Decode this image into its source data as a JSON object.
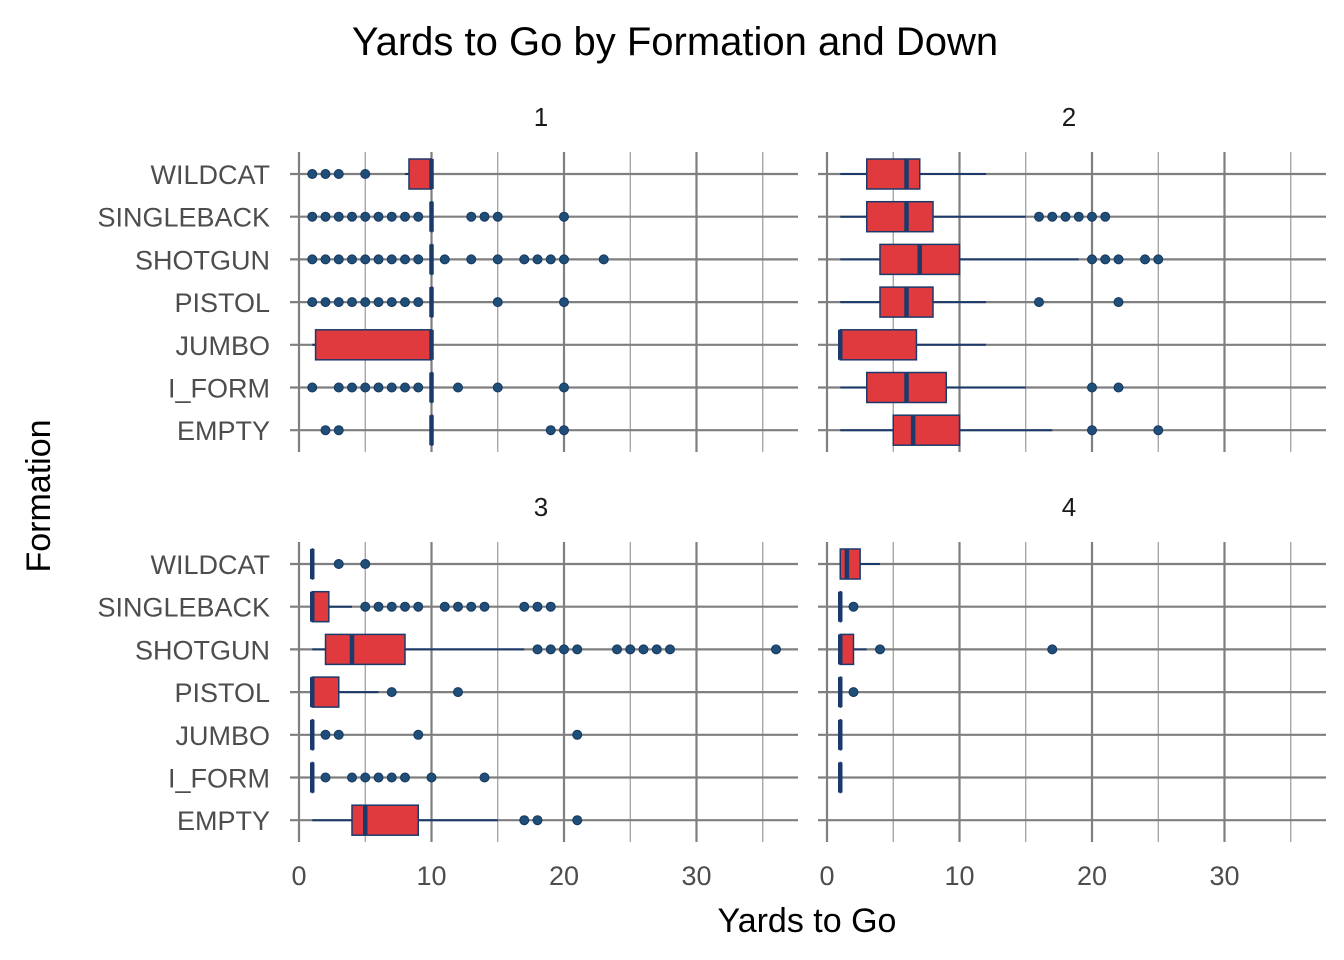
{
  "chart_data": {
    "type": "boxplot",
    "title": "Yards to Go by Formation and Down",
    "xlabel": "Yards to Go",
    "ylabel": "Formation",
    "xlim": [
      0,
      37
    ],
    "x_ticks": [
      0,
      10,
      20,
      30
    ],
    "x_tick_labels": [
      "0",
      "10",
      "20",
      "30"
    ],
    "grid": true,
    "colors": {
      "box_fill": "#e03a3e",
      "box_line": "#1b3a6b",
      "point": "#1f4e79",
      "grid": "#7f7f7f"
    },
    "categories": [
      "WILDCAT",
      "SINGLEBACK",
      "SHOTGUN",
      "PISTOL",
      "JUMBO",
      "I_FORM",
      "EMPTY"
    ],
    "panels": [
      {
        "label": "1",
        "boxes": [
          {
            "formation": "WILDCAT",
            "lower_whisker": 8,
            "q1": 8.3,
            "median": 10,
            "q3": 10,
            "upper_whisker": 10,
            "outliers": [
              1,
              2,
              3,
              5
            ]
          },
          {
            "formation": "SINGLEBACK",
            "lower_whisker": 10,
            "q1": 10,
            "median": 10,
            "q3": 10,
            "upper_whisker": 10,
            "outliers": [
              1,
              2,
              3,
              4,
              5,
              6,
              7,
              8,
              9,
              13,
              14,
              15,
              20
            ]
          },
          {
            "formation": "SHOTGUN",
            "lower_whisker": 10,
            "q1": 10,
            "median": 10,
            "q3": 10,
            "upper_whisker": 10,
            "outliers": [
              1,
              2,
              3,
              4,
              5,
              6,
              7,
              8,
              9,
              11,
              13,
              15,
              17,
              18,
              19,
              20,
              23
            ]
          },
          {
            "formation": "PISTOL",
            "lower_whisker": 10,
            "q1": 10,
            "median": 10,
            "q3": 10,
            "upper_whisker": 10,
            "outliers": [
              1,
              2,
              3,
              4,
              5,
              6,
              7,
              8,
              9,
              15,
              20
            ]
          },
          {
            "formation": "JUMBO",
            "lower_whisker": 1,
            "q1": 1.25,
            "median": 10,
            "q3": 10,
            "upper_whisker": 10,
            "outliers": []
          },
          {
            "formation": "I_FORM",
            "lower_whisker": 10,
            "q1": 10,
            "median": 10,
            "q3": 10,
            "upper_whisker": 10,
            "outliers": [
              1,
              3,
              4,
              5,
              6,
              7,
              8,
              9,
              12,
              15,
              20
            ]
          },
          {
            "formation": "EMPTY",
            "lower_whisker": 10,
            "q1": 10,
            "median": 10,
            "q3": 10,
            "upper_whisker": 10,
            "outliers": [
              2,
              3,
              19,
              20
            ]
          }
        ]
      },
      {
        "label": "2",
        "boxes": [
          {
            "formation": "WILDCAT",
            "lower_whisker": 1,
            "q1": 3,
            "median": 6,
            "q3": 7,
            "upper_whisker": 12,
            "outliers": []
          },
          {
            "formation": "SINGLEBACK",
            "lower_whisker": 1,
            "q1": 3,
            "median": 6,
            "q3": 8,
            "upper_whisker": 15,
            "outliers": [
              16,
              17,
              18,
              19,
              20,
              21
            ]
          },
          {
            "formation": "SHOTGUN",
            "lower_whisker": 1,
            "q1": 4,
            "median": 7,
            "q3": 10,
            "upper_whisker": 19,
            "outliers": [
              20,
              21,
              22,
              24,
              25
            ]
          },
          {
            "formation": "PISTOL",
            "lower_whisker": 1,
            "q1": 4,
            "median": 6,
            "q3": 8,
            "upper_whisker": 12,
            "outliers": [
              16,
              22
            ]
          },
          {
            "formation": "JUMBO",
            "lower_whisker": 1,
            "q1": 1,
            "median": 1,
            "q3": 6.75,
            "upper_whisker": 12,
            "outliers": []
          },
          {
            "formation": "I_FORM",
            "lower_whisker": 1,
            "q1": 3,
            "median": 6,
            "q3": 9,
            "upper_whisker": 15,
            "outliers": [
              20,
              22
            ]
          },
          {
            "formation": "EMPTY",
            "lower_whisker": 1,
            "q1": 5,
            "median": 6.5,
            "q3": 10,
            "upper_whisker": 17,
            "outliers": [
              20,
              25
            ]
          }
        ]
      },
      {
        "label": "3",
        "boxes": [
          {
            "formation": "WILDCAT",
            "lower_whisker": 1,
            "q1": 1,
            "median": 1,
            "q3": 1,
            "upper_whisker": 1,
            "outliers": [
              3,
              5
            ]
          },
          {
            "formation": "SINGLEBACK",
            "lower_whisker": 1,
            "q1": 1,
            "median": 1,
            "q3": 2.25,
            "upper_whisker": 4,
            "outliers": [
              5,
              6,
              7,
              8,
              9,
              11,
              12,
              13,
              14,
              17,
              18,
              19
            ]
          },
          {
            "formation": "SHOTGUN",
            "lower_whisker": 1,
            "q1": 2,
            "median": 4,
            "q3": 8,
            "upper_whisker": 17,
            "outliers": [
              18,
              19,
              20,
              21,
              24,
              25,
              26,
              27,
              28,
              36
            ]
          },
          {
            "formation": "PISTOL",
            "lower_whisker": 1,
            "q1": 1,
            "median": 1,
            "q3": 3,
            "upper_whisker": 6,
            "outliers": [
              7,
              12
            ]
          },
          {
            "formation": "JUMBO",
            "lower_whisker": 1,
            "q1": 1,
            "median": 1,
            "q3": 1,
            "upper_whisker": 1,
            "outliers": [
              2,
              3,
              9,
              21
            ]
          },
          {
            "formation": "I_FORM",
            "lower_whisker": 1,
            "q1": 1,
            "median": 1,
            "q3": 1,
            "upper_whisker": 1,
            "outliers": [
              2,
              4,
              5,
              6,
              7,
              8,
              10,
              14
            ]
          },
          {
            "formation": "EMPTY",
            "lower_whisker": 1,
            "q1": 4,
            "median": 5,
            "q3": 9,
            "upper_whisker": 15,
            "outliers": [
              17,
              18,
              21
            ]
          }
        ]
      },
      {
        "label": "4",
        "boxes": [
          {
            "formation": "WILDCAT",
            "lower_whisker": 1,
            "q1": 1,
            "median": 1.5,
            "q3": 2.5,
            "upper_whisker": 4,
            "outliers": []
          },
          {
            "formation": "SINGLEBACK",
            "lower_whisker": 1,
            "q1": 1,
            "median": 1,
            "q3": 1,
            "upper_whisker": 1,
            "outliers": [
              2
            ]
          },
          {
            "formation": "SHOTGUN",
            "lower_whisker": 1,
            "q1": 1,
            "median": 1,
            "q3": 2,
            "upper_whisker": 3,
            "outliers": [
              4,
              17
            ]
          },
          {
            "formation": "PISTOL",
            "lower_whisker": 1,
            "q1": 1,
            "median": 1,
            "q3": 1,
            "upper_whisker": 1,
            "outliers": [
              2
            ]
          },
          {
            "formation": "JUMBO",
            "lower_whisker": 1,
            "q1": 1,
            "median": 1,
            "q3": 1,
            "upper_whisker": 1,
            "outliers": []
          },
          {
            "formation": "I_FORM",
            "lower_whisker": 1,
            "q1": 1,
            "median": 1,
            "q3": 1,
            "upper_whisker": 1,
            "outliers": []
          },
          {
            "formation": "EMPTY",
            "lower_whisker": null,
            "q1": null,
            "median": null,
            "q3": null,
            "upper_whisker": null,
            "outliers": []
          }
        ]
      }
    ]
  }
}
